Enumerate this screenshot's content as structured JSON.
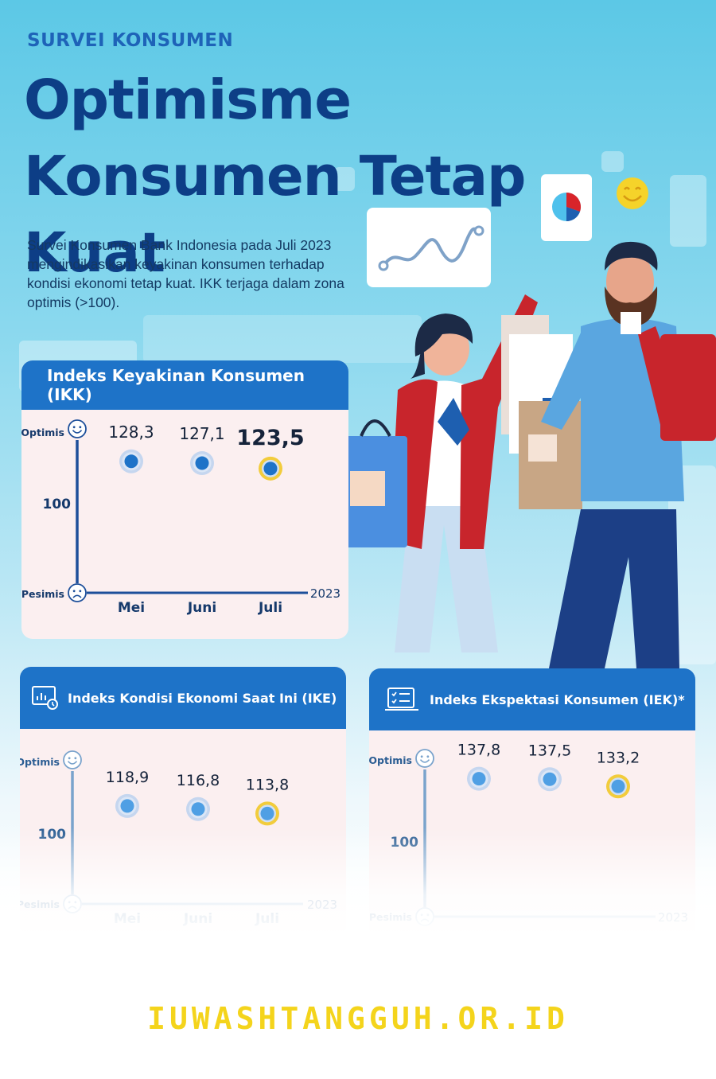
{
  "header": {
    "eyebrow": "SURVEI KONSUMEN",
    "title": "Optimisme Konsumen Tetap Kuat",
    "intro": "Survei Konsumen Bank Indonesia pada Juli 2023 mengindikasikan keyakinan konsumen terhadap kondisi ekonomi tetap kuat. IKK terjaga dalam zona optimis (>100)."
  },
  "colors": {
    "title": "#0d3e86",
    "header_bar": "#1e73c8",
    "card_bg": "#fbeff0",
    "dot": "#1e73c8",
    "dot_highlight_ring": "#f2cc3c",
    "footer": "#f4d41c"
  },
  "icons": {
    "optimis": "smiley-face-icon",
    "pesimis": "sad-face-icon",
    "ike_header": "monitor-chart-icon",
    "iek_header": "clipboard-checklist-icon"
  },
  "chart_data": [
    {
      "id": "ikk",
      "type": "scatter",
      "title": "Indeks Keyakinan Konsumen (IKK)",
      "categories": [
        "Mei",
        "Juni",
        "Juli"
      ],
      "values": [
        128.3,
        127.1,
        123.5
      ],
      "value_labels": [
        "128,3",
        "127,1",
        "123,5"
      ],
      "highlight_index": 2,
      "y_top_label": "Optimis",
      "y_bottom_label": "Pesimis",
      "y_ref_label": "100",
      "y_ref_value": 100,
      "x_end_label": "2023",
      "grid": false,
      "legend": "none"
    },
    {
      "id": "ike",
      "type": "scatter",
      "title": "Indeks Kondisi Ekonomi Saat Ini (IKE)",
      "categories": [
        "Mei",
        "Juni",
        "Juli"
      ],
      "values": [
        118.9,
        116.8,
        113.8
      ],
      "value_labels": [
        "118,9",
        "116,8",
        "113,8"
      ],
      "highlight_index": 2,
      "y_top_label": "Optimis",
      "y_bottom_label": "Pesimis",
      "y_ref_label": "100",
      "y_ref_value": 100,
      "x_end_label": "2023",
      "grid": false,
      "legend": "none"
    },
    {
      "id": "iek",
      "type": "scatter",
      "title": "Indeks Ekspektasi Konsumen (IEK)*",
      "categories": [
        "",
        "",
        ""
      ],
      "values": [
        137.8,
        137.5,
        133.2
      ],
      "value_labels": [
        "137,8",
        "137,5",
        "133,2"
      ],
      "highlight_index": 2,
      "y_top_label": "Optimis",
      "y_bottom_label": "Pesimis",
      "y_ref_label": "100",
      "y_ref_value": 100,
      "x_end_label": "2023",
      "grid": false,
      "legend": "none"
    }
  ],
  "footer": {
    "watermark": "IUWASHTANGGUH.OR.ID"
  }
}
